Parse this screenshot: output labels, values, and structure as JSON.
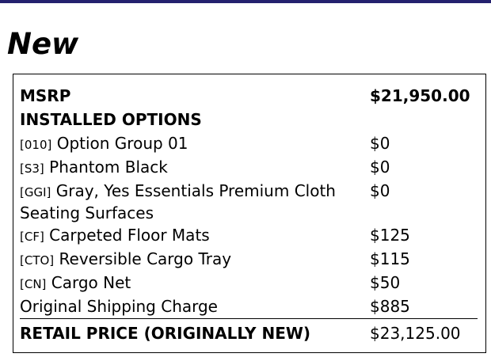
{
  "header_bar_color": "#24216e",
  "title": "New",
  "msrp": {
    "label": "MSRP",
    "value": "$21,950.00"
  },
  "installed_options_label": "INSTALLED OPTIONS",
  "options": [
    {
      "code": "[010]",
      "name": "Option Group 01",
      "price": "$0"
    },
    {
      "code": "[S3]",
      "name": "Phantom Black",
      "price": "$0"
    },
    {
      "code": "[GGI]",
      "name": "Gray, Yes Essentials Premium Cloth Seating Surfaces",
      "price": "$0"
    },
    {
      "code": "[CF]",
      "name": "Carpeted Floor Mats",
      "price": "$125"
    },
    {
      "code": "[CTO]",
      "name": "Reversible Cargo Tray",
      "price": "$115"
    },
    {
      "code": "[CN]",
      "name": "Cargo Net",
      "price": "$50"
    }
  ],
  "shipping": {
    "label": "Original Shipping Charge",
    "value": "$885"
  },
  "retail": {
    "label": "RETAIL PRICE (ORIGINALLY NEW)",
    "value": "$23,125.00"
  }
}
